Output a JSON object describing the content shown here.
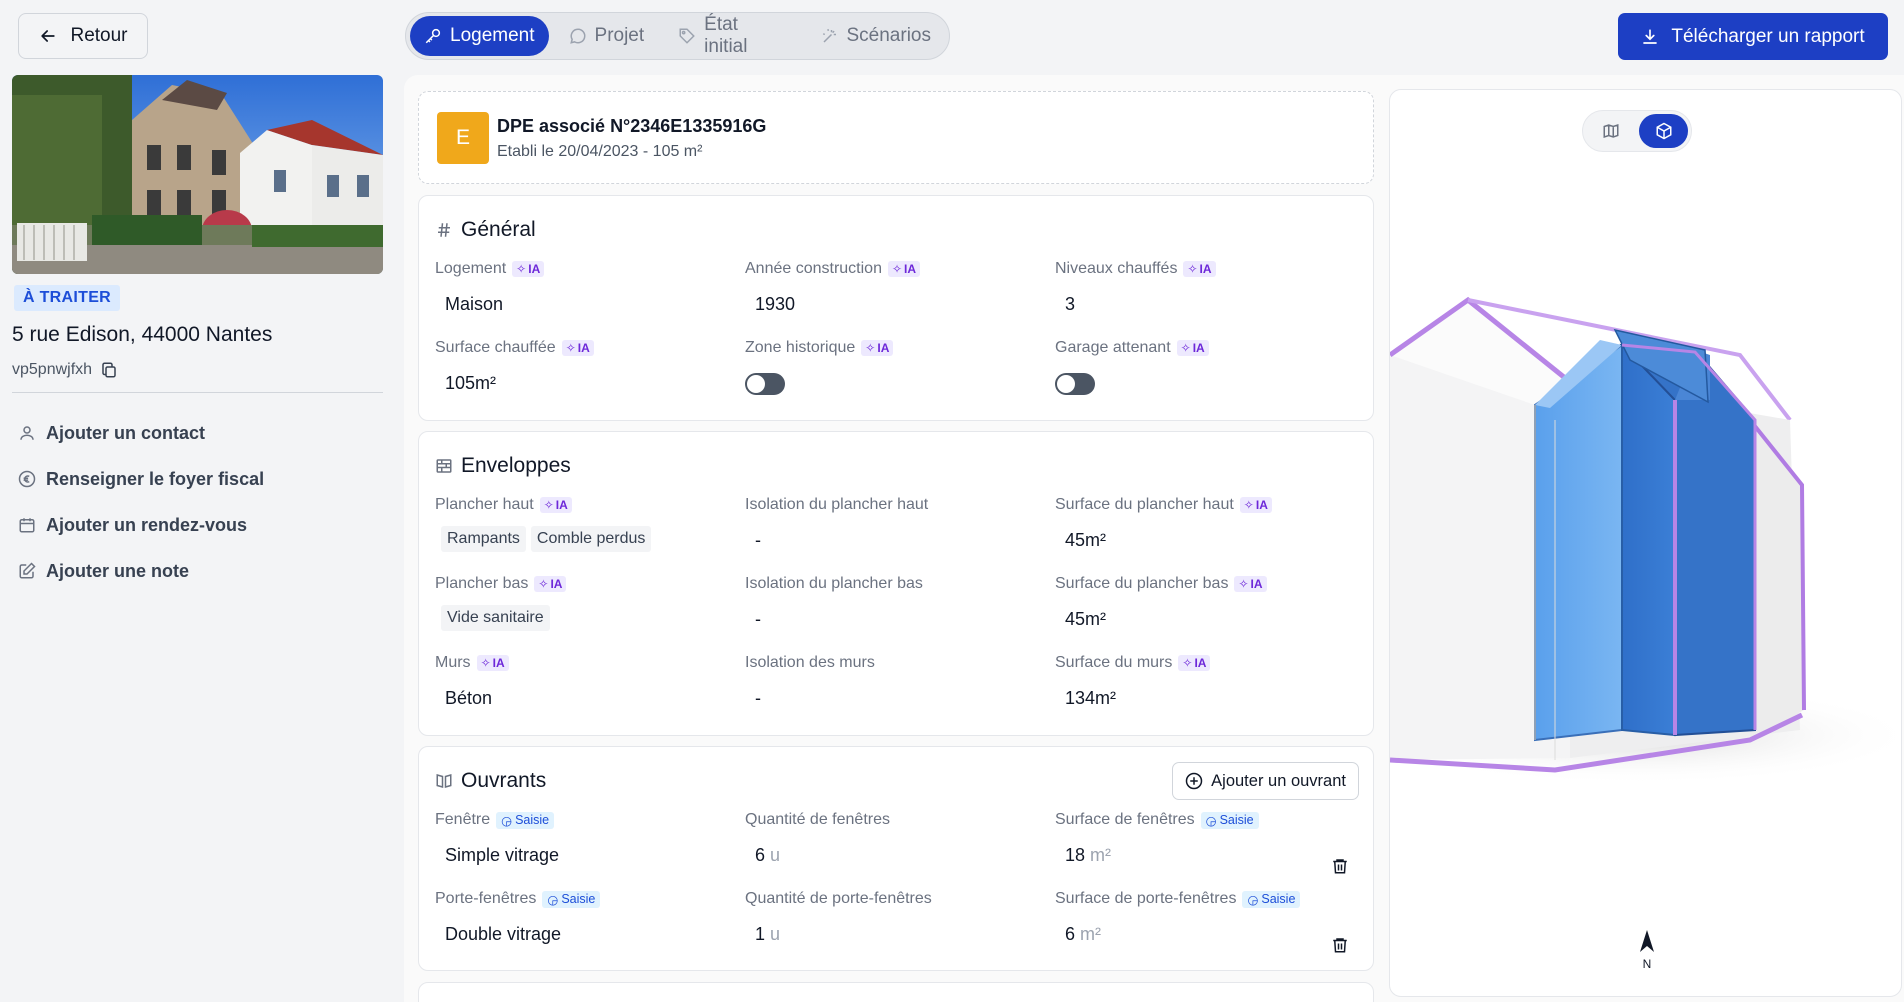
{
  "nav": {
    "back_label": "Retour"
  },
  "tabs": [
    {
      "label": "Logement"
    },
    {
      "label": "Projet"
    },
    {
      "label": "État initial"
    },
    {
      "label": "Scénarios"
    }
  ],
  "download_label": "Télécharger un rapport",
  "property": {
    "status": "À TRAITER",
    "address": "5 rue Edison, 44000 Nantes",
    "reference": "vp5pnwjfxh"
  },
  "side_actions": [
    {
      "label": "Ajouter un contact",
      "icon": "user-icon"
    },
    {
      "label": "Renseigner le foyer fiscal",
      "icon": "euro-icon"
    },
    {
      "label": "Ajouter un rendez-vous",
      "icon": "calendar-icon"
    },
    {
      "label": "Ajouter une note",
      "icon": "edit-note-icon"
    }
  ],
  "dpe": {
    "grade": "E",
    "title": "DPE associé N°2346E1335916G",
    "subtitle": "Etabli le 20/04/2023 - 105 m²"
  },
  "badges": {
    "ia": "IA",
    "saisie": "Saisie"
  },
  "general": {
    "title": "Général",
    "logement_label": "Logement",
    "logement_value": "Maison",
    "annee_label": "Année construction",
    "annee_value": "1930",
    "niveaux_label": "Niveaux chauffés",
    "niveaux_value": "3",
    "surface_label": "Surface chauffée",
    "surface_value": "105m²",
    "zone_label": "Zone historique",
    "garage_label": "Garage attenant"
  },
  "enveloppes": {
    "title": "Enveloppes",
    "plancher_haut_label": "Plancher haut",
    "plancher_haut_chips": [
      "Rampants",
      "Comble perdus"
    ],
    "iso_haut_label": "Isolation du plancher haut",
    "iso_haut_value": "-",
    "surf_haut_label": "Surface du plancher haut",
    "surf_haut_value": "45m²",
    "plancher_bas_label": "Plancher bas",
    "plancher_bas_chips": [
      "Vide sanitaire"
    ],
    "iso_bas_label": "Isolation du plancher bas",
    "iso_bas_value": "-",
    "surf_bas_label": "Surface du plancher bas",
    "surf_bas_value": "45m²",
    "murs_label": "Murs",
    "murs_value": "Béton",
    "iso_murs_label": "Isolation des murs",
    "iso_murs_value": "-",
    "surf_murs_label": "Surface du murs",
    "surf_murs_value": "134m²"
  },
  "ouvrants": {
    "title": "Ouvrants",
    "add_label": "Ajouter un ouvrant",
    "rows": [
      {
        "type_label": "Fenêtre",
        "type_value": "Simple vitrage",
        "qty_label": "Quantité de fenêtres",
        "qty_value": "6",
        "qty_unit": "u",
        "surf_label": "Surface de fenêtres",
        "surf_value": "18",
        "surf_unit": "m²"
      },
      {
        "type_label": "Porte-fenêtres",
        "type_value": "Double vitrage",
        "qty_label": "Quantité de porte-fenêtres",
        "qty_value": "1",
        "qty_unit": "u",
        "surf_label": "Surface de porte-fenêtres",
        "surf_value": "6",
        "surf_unit": "m²"
      }
    ]
  },
  "viewer": {
    "compass_label": "N",
    "active_view": "3d"
  },
  "colors": {
    "primary": "#1d3fc4",
    "dpe_e": "#f0a81b",
    "ia": "#6d28d9"
  }
}
